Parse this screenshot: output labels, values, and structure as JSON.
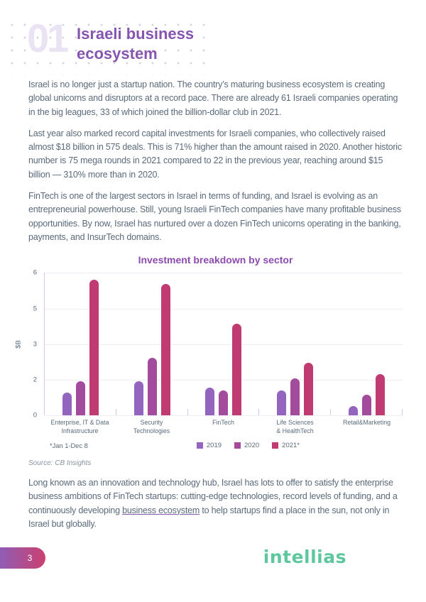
{
  "colors": {
    "accent-purple": "#8655AF",
    "chart-title": "#8C4BAE",
    "body-text": "#5A6A7B",
    "muted-text": "#8A93A1",
    "watermark": "#E9E3F3",
    "dots": "#D6D0DC",
    "axis-line": "#D9C7E8",
    "gridline": "#EDEDF3",
    "badge-start": "#8F5DB5",
    "badge-end": "#CB4070",
    "brand-green": "#5EC79D"
  },
  "header": {
    "section_number": "01",
    "title_line1": "Israeli business",
    "title_line2": "ecosystem"
  },
  "paragraphs": {
    "p1": "Israel is no longer just a startup nation. The country’s maturing business ecosystem is creating global unicorns and disruptors at a record pace. There are already 61 Israeli companies operating in the big leagues, 33 of which joined the billion-dollar club in 2021.",
    "p2": "Last year also marked record capital investments for Israeli companies, who collectively raised almost $18 billion in 575 deals. This is 71% higher than the amount raised in 2020. Another historic number is 75 mega rounds in 2021 compared to 22 in the previous year, reaching around $15 billion — 310% more than in 2020.",
    "p3": "FinTech is one of the largest sectors in Israel in terms of funding, and Israel is evolving as an entrepreneurial powerhouse. Still, young Israeli FinTech companies have many profitable business opportunities. By now, Israel has nurtured over a dozen FinTech unicorns operating in the banking, payments, and InsurTech domains.",
    "p4_before": "Long known as an innovation and technology hub, Israel has lots to offer to satisfy the enterprise business ambitions of FinTech startups: cutting-edge technologies, record levels of funding, and a continuously developing ",
    "p4_link": "business ecosystem",
    "p4_after": " to help startups find a place in the sun, not only in Israel but globally."
  },
  "chart": {
    "footnote": "*Jan 1-Dec 8",
    "source": "Source: CB Insights"
  },
  "chart_data": {
    "type": "bar",
    "title": "Investment breakdown by sector",
    "xlabel": "",
    "ylabel": "$B",
    "ylim": [
      0,
      6.2
    ],
    "ytick_labels": [
      "6",
      "5",
      "3",
      "2",
      "0"
    ],
    "grid": true,
    "legend_position": "bottom",
    "categories": [
      "Enterprise, IT & Data\nInfrastructure",
      "Security\nTechnologies",
      "FinTech",
      "Life Sciences\n& HealthTech",
      "Retail&Marketing"
    ],
    "series": [
      {
        "name": "2019",
        "color": "#9365BE",
        "values": [
          1.0,
          1.5,
          1.2,
          1.1,
          0.4
        ]
      },
      {
        "name": "2020",
        "color": "#A34B9D",
        "values": [
          1.5,
          2.5,
          1.1,
          1.6,
          0.9
        ]
      },
      {
        "name": "2021*",
        "color": "#C03B72",
        "values": [
          5.9,
          5.7,
          4.0,
          2.3,
          1.8
        ]
      }
    ]
  },
  "footer": {
    "page_number": "3",
    "brand": "intellias"
  }
}
